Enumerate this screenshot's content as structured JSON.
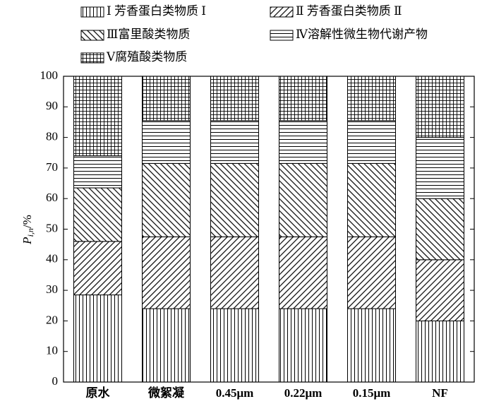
{
  "chart_data": {
    "type": "stacked-bar",
    "categories": [
      "原水",
      "微絮凝",
      "0.45μm",
      "0.22μm",
      "0.15μm",
      "NF"
    ],
    "series": [
      {
        "name": "Ⅰ 芳香蛋白类物质 Ⅰ",
        "color": "#000000",
        "pattern": "vertical",
        "values": [
          28.5,
          24,
          24,
          24,
          24,
          20
        ]
      },
      {
        "name": "Ⅱ 芳香蛋白类物质 Ⅱ",
        "color": "#000000",
        "pattern": "diagonal-up",
        "values": [
          17.5,
          23.5,
          23.5,
          23.5,
          23.5,
          20
        ]
      },
      {
        "name": "Ⅲ富里酸类物质",
        "color": "#000000",
        "pattern": "diagonal-down",
        "values": [
          17.5,
          24,
          24,
          24,
          24,
          20
        ]
      },
      {
        "name": "Ⅳ溶解性微生物代谢产物",
        "color": "#000000",
        "pattern": "horizontal",
        "values": [
          10.5,
          14,
          14,
          14,
          14,
          20
        ]
      },
      {
        "name": "Ⅴ腐殖酸类物质",
        "color": "#000000",
        "pattern": "grid",
        "values": [
          26,
          14.5,
          14.5,
          14.5,
          14.5,
          20
        ]
      }
    ],
    "y_label": {
      "main": "P",
      "sub": "i,n",
      "unit": "/%"
    },
    "ylim": [
      0,
      100
    ],
    "yticks": [
      0,
      10,
      20,
      30,
      40,
      50,
      60,
      70,
      80,
      90,
      100
    ],
    "legend": "top"
  }
}
